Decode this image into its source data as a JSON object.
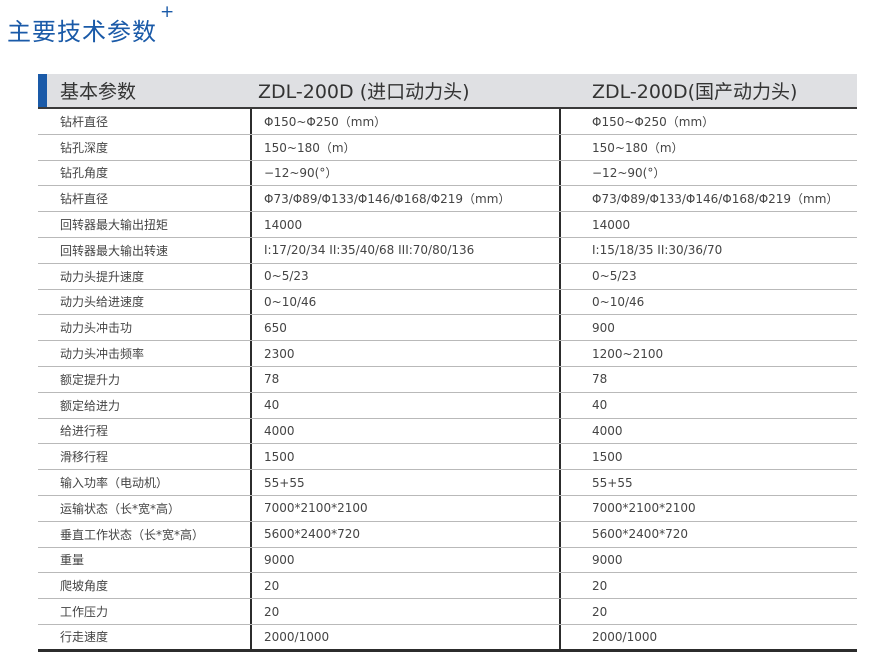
{
  "title": "主要技术参数",
  "title_mark": "+",
  "colors": {
    "accent": "#1a5aa8",
    "header_bg": "#dfe0e3"
  },
  "header": [
    "基本参数",
    "ZDL-200D  (进口动力头)",
    "ZDL-200D(国产动力头)"
  ],
  "rows": [
    [
      "钻杆直径",
      "Φ150~Φ250（mm）",
      "Φ150~Φ250（mm）"
    ],
    [
      "钻孔深度",
      "150~180（m）",
      "150~180（m）"
    ],
    [
      "钻孔角度",
      "−12~90(°）",
      "−12~90(°）"
    ],
    [
      "钻杆直径",
      "Φ73/Φ89/Φ133/Φ146/Φ168/Φ219（mm）",
      "Φ73/Φ89/Φ133/Φ146/Φ168/Φ219（mm）"
    ],
    [
      "回转器最大输出扭矩",
      "14000",
      "14000"
    ],
    [
      "回转器最大输出转速",
      "I:17/20/34 II:35/40/68 III:70/80/136",
      "I:15/18/35 II:30/36/70"
    ],
    [
      "动力头提升速度",
      "0~5/23",
      "0~5/23"
    ],
    [
      "动力头给进速度",
      "0~10/46",
      "0~10/46"
    ],
    [
      "动力头冲击功",
      "650",
      "900"
    ],
    [
      "动力头冲击频率",
      "2300",
      "1200~2100"
    ],
    [
      "额定提升力",
      "78",
      "78"
    ],
    [
      "额定给进力",
      "40",
      "40"
    ],
    [
      "给进行程",
      "4000",
      "4000"
    ],
    [
      "滑移行程",
      "1500",
      "1500"
    ],
    [
      "输入功率（电动机）",
      "55+55",
      "55+55"
    ],
    [
      "运输状态（长*宽*高）",
      "7000*2100*2100",
      "7000*2100*2100"
    ],
    [
      "垂直工作状态（长*宽*高）",
      "5600*2400*720",
      "5600*2400*720"
    ],
    [
      "重量",
      "9000",
      "9000"
    ],
    [
      "爬坡角度",
      "20",
      "20"
    ],
    [
      "工作压力",
      "20",
      "20"
    ],
    [
      "行走速度",
      "2000/1000",
      "2000/1000"
    ]
  ]
}
